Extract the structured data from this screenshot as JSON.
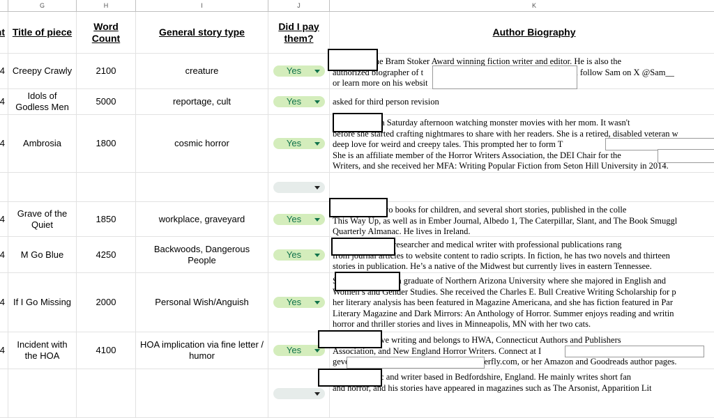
{
  "columns": [
    "G",
    "H",
    "I",
    "J",
    "K"
  ],
  "headers": {
    "prev": "nt",
    "title": "Title of piece",
    "word_count": "Word Count",
    "story_type": "General story type",
    "paid": "Did I pay them?",
    "bio": "Author Biography"
  },
  "rows": [
    {
      "prev": "4",
      "title": "Creepy Crawly",
      "words": "2100",
      "type": "creature",
      "paid": "Yes",
      "bio": [
        "r is a two-time Bram Stoker Award winning fiction writer and editor. He is also the",
        "authorized biographer of t                                                        . You can follow Sam on X @Sam__",
        "or learn more on his websit"
      ]
    },
    {
      "prev": "4",
      "title": "Idols of Godless Men",
      "words": "5000",
      "type": "reportage, cult",
      "paid": "Yes",
      "bio": [
        "asked for third person revision"
      ]
    },
    {
      "prev": "4",
      "title": "Ambrosia",
      "words": "1800",
      "type": "cosmic horror",
      "paid": "Yes",
      "bio": [
        "e spent many a Saturday afternoon watching monster movies with her mom. It wasn't",
        "before she started crafting nightmares to share with her readers. She is a retired, disabled veteran w",
        "deep love for weird and creepy tales. This prompted her to form T",
        "She is an affiliate member of the Horror Writers Association, the DEI Chair for the",
        "Writers, and she received her MFA: Writing Popular Fiction from Seton Hill University in 2014."
      ]
    },
    {
      "prev": "",
      "title": "",
      "words": "",
      "type": "",
      "paid": "",
      "bio": []
    },
    {
      "prev": "4",
      "title": "Grave of the Quiet",
      "words": "1850",
      "type": "workplace, graveyard",
      "paid": "Yes",
      "bio": [
        "n has written two books for children, and several short stories, published in the colle",
        "This Way Up, as well as in Ember Journal, Albedo 1, The Caterpillar, Slant, and The Book Smuggl",
        "Quarterly Almanac. He lives in Ireland."
      ]
    },
    {
      "prev": "4",
      "title": "M Go Blue",
      "words": "4250",
      "type": "Backwoods, Dangerous People",
      "paid": "Yes",
      "bio": [
        "was previously a researcher and medical writer with professional publications rang",
        "from journal articles to website content to radio scripts. In fiction, he has two novels and thirteen",
        "stories in publication. He’s a native of the Midwest but currently lives in eastern Tennessee."
      ]
    },
    {
      "prev": "4",
      "title": "If I Go Missing",
      "words": "2000",
      "type": "Personal Wish/Anguish",
      "paid": "Yes",
      "bio": [
        "S                         s a graduate of Northern Arizona University where she majored in English and",
        "Women’s and Gender Studies. She received the Charles E. Bull Creative Writing Scholarship for p",
        "her literary analysis has been featured in Magazine Americana, and she has fiction featured in Par",
        "Literary Magazine and Dark Mirrors: An Anthology of Horror. Summer enjoys reading and writin",
        "horror and thriller stories and lives in Minneapolis, MN with her two cats."
      ]
    },
    {
      "prev": "4",
      "title": "Incident with the HOA",
      "words": "4100",
      "type": "HOA implication via fine letter / humor",
      "paid": "Yes",
      "bio": [
        "MFA in creative writing and belongs to HWA, Connecticut Authors and Publishers",
        "Association, and New England Horror Writers. Connect at I                                                               ,",
        "geve                                                              erfly.com, or her Amazon and Goodreads author pages."
      ]
    },
    {
      "prev": "",
      "title": "",
      "words": "",
      "type": "",
      "paid": "",
      "bio": [
        "is an academic and writer based in Bedfordshire, England. He mainly writes short fan",
        "and horror, and his stories have appeared in magazines such as The Arsonist, Apparition Lit"
      ]
    }
  ],
  "colors": {
    "chip_bg": "#d4edbc",
    "chip_text": "#11734b"
  }
}
